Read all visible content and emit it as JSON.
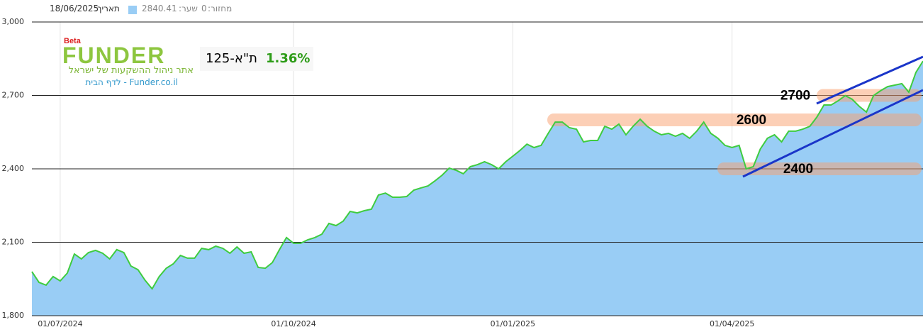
{
  "header": {
    "date_label": "תאריך:",
    "date": "18/06/2025",
    "price_label": "שער:",
    "price": "2840.41",
    "volume_label": "מחזור:",
    "volume": "0"
  },
  "logo": {
    "beta": "Beta",
    "name": "FUNDER",
    "tagline": "אתר ניהול ההשקעות של ישראל",
    "link": "Funder.co.il - לדף הבית"
  },
  "index_box": {
    "name": "ת\"א-125",
    "change": "1.36%"
  },
  "chart_data": {
    "type": "area",
    "categories": [
      null,
      null,
      null,
      null,
      "01/07/2024",
      null,
      null,
      null,
      null,
      null,
      null,
      null,
      null,
      null,
      null,
      null,
      null,
      null,
      null,
      null,
      null,
      null,
      null,
      null,
      null,
      null,
      null,
      null,
      null,
      null,
      null,
      null,
      null,
      null,
      null,
      null,
      null,
      "01/10/2024",
      null,
      null,
      null,
      null,
      null,
      null,
      null,
      null,
      null,
      null,
      null,
      null,
      null,
      null,
      null,
      null,
      null,
      null,
      null,
      null,
      null,
      null,
      null,
      null,
      null,
      null,
      null,
      null,
      null,
      null,
      "01/01/2025",
      null,
      null,
      null,
      null,
      null,
      null,
      null,
      null,
      null,
      null,
      null,
      null,
      null,
      null,
      null,
      null,
      null,
      null,
      null,
      null,
      null,
      null,
      null,
      null,
      null,
      null,
      null,
      null,
      null,
      null,
      "01/04/2025",
      null,
      null,
      null,
      null,
      null,
      null,
      null,
      null,
      null,
      null,
      null,
      null,
      null,
      null,
      null,
      null,
      null,
      null,
      null,
      null,
      null,
      null,
      null,
      null,
      null,
      null,
      null
    ],
    "series": [
      {
        "color": "#3fcc3f",
        "fill": "#99cdf5",
        "values": [
          1980,
          1936,
          1925,
          1960,
          1942,
          1974,
          2052,
          2032,
          2058,
          2067,
          2055,
          2032,
          2070,
          2058,
          2003,
          1988,
          1945,
          1910,
          1960,
          1994,
          2012,
          2046,
          2035,
          2035,
          2075,
          2070,
          2084,
          2075,
          2055,
          2081,
          2055,
          2061,
          1997,
          1994,
          2017,
          2070,
          2119,
          2096,
          2096,
          2110,
          2119,
          2133,
          2177,
          2168,
          2186,
          2226,
          2220,
          2229,
          2235,
          2293,
          2301,
          2284,
          2284,
          2287,
          2313,
          2322,
          2330,
          2351,
          2374,
          2403,
          2394,
          2380,
          2409,
          2417,
          2429,
          2417,
          2400,
          2429,
          2452,
          2475,
          2501,
          2487,
          2496,
          2545,
          2591,
          2591,
          2568,
          2562,
          2510,
          2516,
          2516,
          2574,
          2562,
          2583,
          2539,
          2574,
          2603,
          2574,
          2554,
          2539,
          2545,
          2533,
          2545,
          2525,
          2554,
          2591,
          2545,
          2525,
          2496,
          2487,
          2496,
          2400,
          2409,
          2481,
          2525,
          2539,
          2510,
          2554,
          2554,
          2562,
          2574,
          2612,
          2661,
          2661,
          2678,
          2699,
          2684,
          2655,
          2632,
          2699,
          2719,
          2736,
          2742,
          2748,
          2713,
          2794,
          2840.41
        ]
      }
    ],
    "ylim": [
      1800,
      3000
    ],
    "yticks": [
      {
        "value": 1800,
        "label": "1,800"
      },
      {
        "value": 2100,
        "label": "2,100"
      },
      {
        "value": 2400,
        "label": "2,400"
      },
      {
        "value": 2700,
        "label": "2,700"
      },
      {
        "value": 3000,
        "label": "3,000"
      }
    ],
    "grid": true,
    "levels": [
      2700,
      2600,
      2400
    ]
  }
}
